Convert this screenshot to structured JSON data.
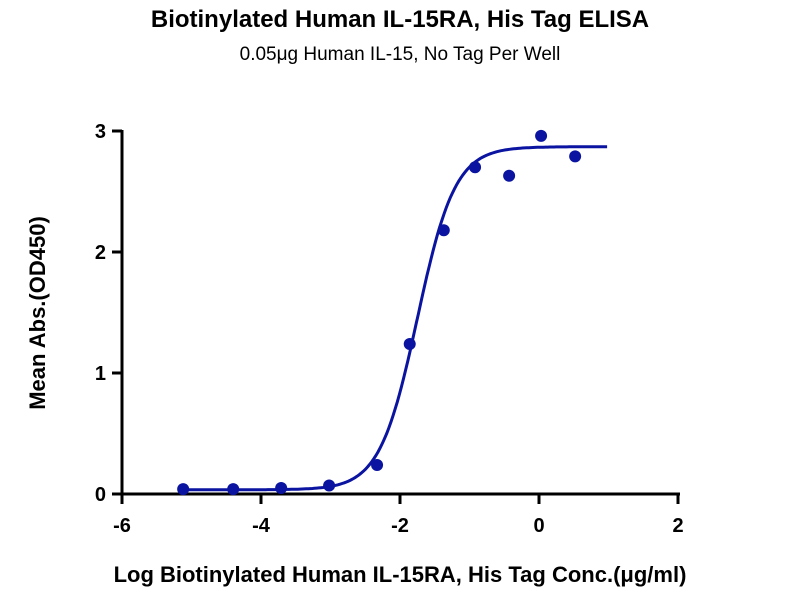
{
  "chart_data": {
    "type": "scatter",
    "title": "Biotinylated Human IL-15RA, His Tag ELISA",
    "subtitle": "0.05μg  Human IL-15, No Tag Per Well",
    "xlabel": "Log Biotinylated Human IL-15RA, His Tag Conc.(μg/ml)",
    "ylabel": "Mean Abs.(OD450)",
    "xlim": [
      -6,
      2
    ],
    "ylim": [
      0,
      3
    ],
    "xticks": [
      -6,
      -4,
      -2,
      0,
      2
    ],
    "yticks": [
      0,
      1,
      2,
      3
    ],
    "grid": false,
    "color": "#0a14a0",
    "points": {
      "x": [
        -5.12,
        -4.4,
        -3.71,
        -3.02,
        -2.33,
        -1.86,
        -1.37,
        -0.92,
        -0.43,
        0.03,
        0.52
      ],
      "y": [
        0.04,
        0.04,
        0.05,
        0.07,
        0.24,
        1.24,
        2.18,
        2.7,
        2.63,
        2.96,
        2.79
      ]
    },
    "fit": {
      "model": "4PL sigmoid",
      "bottom": 0.035,
      "top": 2.87,
      "log_ec50": -1.75,
      "hill_slope": 1.6,
      "x_range": [
        -5.12,
        0.98
      ]
    }
  }
}
